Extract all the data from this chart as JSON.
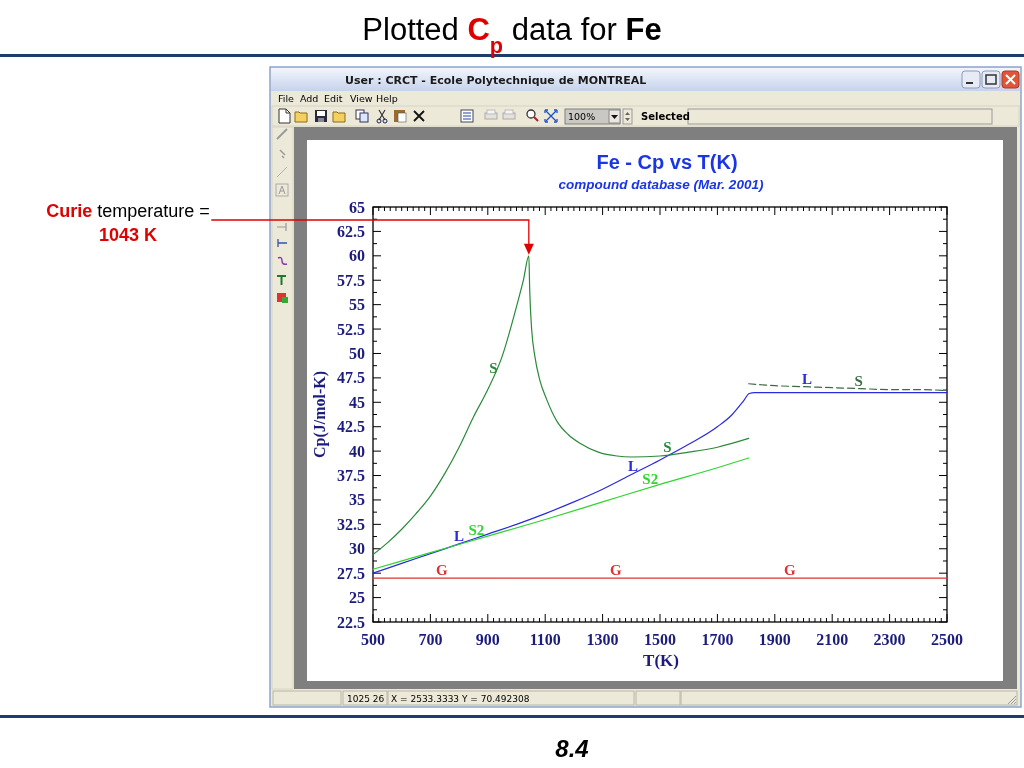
{
  "chart_data": {
    "type": "line",
    "title": "Fe - Cp vs T(K)",
    "subtitle": "compound database (Mar. 2001)",
    "xlabel": "T(K)",
    "ylabel": "Cp(J/mol-K)",
    "xlim": [
      500,
      2500
    ],
    "ylim": [
      22.5,
      65
    ],
    "xticks": [
      500,
      {
        "value": 520,
        "label": null
      },
      {
        "value": 540,
        "label": null
      },
      {
        "value": 560,
        "label": null
      },
      {
        "value": 580,
        "label": null
      },
      {
        "value": 600,
        "label": null
      },
      {
        "value": 620,
        "label": null
      },
      {
        "value": 640,
        "label": null
      },
      {
        "value": 660,
        "label": null
      },
      {
        "value": 680,
        "label": null
      },
      700,
      {
        "value": 720,
        "label": null
      },
      {
        "value": 740,
        "label": null
      },
      {
        "value": 760,
        "label": null
      },
      {
        "value": 780,
        "label": null
      },
      {
        "value": 800,
        "label": null
      },
      {
        "value": 820,
        "label": null
      },
      {
        "value": 840,
        "label": null
      },
      {
        "value": 860,
        "label": null
      },
      {
        "value": 880,
        "label": null
      },
      900,
      {
        "value": 920,
        "label": null
      },
      {
        "value": 940,
        "label": null
      },
      {
        "value": 960,
        "label": null
      },
      {
        "value": 980,
        "label": null
      },
      {
        "value": 1000,
        "label": null
      },
      {
        "value": 1020,
        "label": null
      },
      {
        "value": 1040,
        "label": null
      },
      {
        "value": 1060,
        "label": null
      },
      {
        "value": 1080,
        "label": null
      },
      1100,
      {
        "value": 1120,
        "label": null
      },
      {
        "value": 1140,
        "label": null
      },
      {
        "value": 1160,
        "label": null
      },
      {
        "value": 1180,
        "label": null
      },
      {
        "value": 1200,
        "label": null
      },
      {
        "value": 1220,
        "label": null
      },
      {
        "value": 1240,
        "label": null
      },
      {
        "value": 1260,
        "label": null
      },
      {
        "value": 1280,
        "label": null
      },
      1300,
      {
        "value": 1320,
        "label": null
      },
      {
        "value": 1340,
        "label": null
      },
      {
        "value": 1360,
        "label": null
      },
      {
        "value": 1380,
        "label": null
      },
      {
        "value": 1400,
        "label": null
      },
      {
        "value": 1420,
        "label": null
      },
      {
        "value": 1440,
        "label": null
      },
      {
        "value": 1460,
        "label": null
      },
      {
        "value": 1480,
        "label": null
      },
      1500,
      {
        "value": 1520,
        "label": null
      },
      {
        "value": 1540,
        "label": null
      },
      {
        "value": 1560,
        "label": null
      },
      {
        "value": 1580,
        "label": null
      },
      {
        "value": 1600,
        "label": null
      },
      {
        "value": 1620,
        "label": null
      },
      {
        "value": 1640,
        "label": null
      },
      {
        "value": 1660,
        "label": null
      },
      {
        "value": 1680,
        "label": null
      },
      1700,
      {
        "value": 1720,
        "label": null
      },
      {
        "value": 1740,
        "label": null
      },
      {
        "value": 1760,
        "label": null
      },
      {
        "value": 1780,
        "label": null
      },
      {
        "value": 1800,
        "label": null
      },
      {
        "value": 1820,
        "label": null
      },
      {
        "value": 1840,
        "label": null
      },
      {
        "value": 1860,
        "label": null
      },
      {
        "value": 1880,
        "label": null
      },
      1900,
      {
        "value": 1920,
        "label": null
      },
      {
        "value": 1940,
        "label": null
      },
      {
        "value": 1960,
        "label": null
      },
      {
        "value": 1980,
        "label": null
      },
      {
        "value": 2000,
        "label": null
      },
      {
        "value": 2020,
        "label": null
      },
      {
        "value": 2040,
        "label": null
      },
      {
        "value": 2060,
        "label": null
      },
      {
        "value": 2080,
        "label": null
      },
      2100,
      {
        "value": 2120,
        "label": null
      },
      {
        "value": 2140,
        "label": null
      },
      {
        "value": 2160,
        "label": null
      },
      {
        "value": 2180,
        "label": null
      },
      {
        "value": 2200,
        "label": null
      },
      {
        "value": 2220,
        "label": null
      },
      {
        "value": 2240,
        "label": null
      },
      {
        "value": 2260,
        "label": null
      },
      {
        "value": 2280,
        "label": null
      },
      2300,
      {
        "value": 2320,
        "label": null
      },
      {
        "value": 2340,
        "label": null
      },
      {
        "value": 2360,
        "label": null
      },
      {
        "value": 2380,
        "label": null
      },
      {
        "value": 2400,
        "label": null
      },
      {
        "value": 2420,
        "label": null
      },
      {
        "value": 2440,
        "label": null
      },
      {
        "value": 2460,
        "label": null
      },
      {
        "value": 2480,
        "label": null
      },
      2500
    ],
    "yticks": [
      22.5,
      {
        "value": 23.75,
        "label": null
      },
      25,
      {
        "value": 26.25,
        "label": null
      },
      27.5,
      {
        "value": 28.75,
        "label": null
      },
      30,
      {
        "value": 31.25,
        "label": null
      },
      32.5,
      {
        "value": 33.75,
        "label": null
      },
      35,
      {
        "value": 36.25,
        "label": null
      },
      37.5,
      {
        "value": 38.75,
        "label": null
      },
      40,
      {
        "value": 41.25,
        "label": null
      },
      42.5,
      {
        "value": 43.75,
        "label": null
      },
      45,
      {
        "value": 46.25,
        "label": null
      },
      47.5,
      {
        "value": 48.75,
        "label": null
      },
      50,
      {
        "value": 51.25,
        "label": null
      },
      52.5,
      {
        "value": 53.75,
        "label": null
      },
      55,
      {
        "value": 56.25,
        "label": null
      },
      57.5,
      {
        "value": 58.75,
        "label": null
      },
      60,
      {
        "value": 61.25,
        "label": null
      },
      62.5,
      {
        "value": 63.75,
        "label": null
      },
      65
    ],
    "series": [
      {
        "name": "G",
        "color": "#dd3333",
        "x": [
          500,
          1500,
          2500
        ],
        "values": [
          27,
          27,
          27
        ]
      },
      {
        "name": "L",
        "color": "#2b2bdd",
        "x": [
          500,
          600,
          700,
          800,
          900,
          1000,
          1100,
          1200,
          1300,
          1400,
          1500,
          1600,
          1700,
          1750,
          1790,
          1811,
          1830,
          2000,
          2500
        ],
        "values": [
          27.5,
          28.5,
          29.5,
          30.5,
          31.5,
          32.5,
          33.6,
          34.8,
          36.1,
          37.6,
          39.1,
          40.7,
          42.5,
          43.7,
          45.1,
          45.9,
          46,
          46,
          46
        ]
      },
      {
        "name": "S2",
        "color": "#2ed62e",
        "x": [
          500,
          700,
          900,
          1100,
          1300,
          1500,
          1700,
          1809
        ],
        "values": [
          27.9,
          29.6,
          31.3,
          33,
          34.8,
          36.6,
          38.3,
          39.3
        ]
      },
      {
        "name": "S",
        "color": "#2a8a3a",
        "x": [
          500,
          550,
          600,
          650,
          700,
          750,
          800,
          850,
          900,
          950,
          1000,
          1024,
          1043,
          1046,
          1053,
          1064,
          1081,
          1105,
          1140,
          1180,
          1221,
          1285,
          1350,
          1400,
          1500,
          1600,
          1700,
          1809
        ],
        "values": [
          29.4,
          30.6,
          32,
          33.6,
          35.4,
          37.7,
          40.4,
          43.5,
          46.3,
          49.7,
          54.8,
          57.5,
          60,
          56.5,
          52.4,
          49.7,
          47.3,
          45.3,
          43.1,
          41.7,
          40.8,
          39.9,
          39.5,
          39.4,
          39.5,
          39.9,
          40.4,
          41.3
        ]
      },
      {
        "name": "S",
        "color": "#3d6b45",
        "line_style": "dashed",
        "x": [
          1809,
          1900,
          2000,
          2100,
          2200,
          2300,
          2400,
          2500
        ],
        "values": [
          46.9,
          46.7,
          46.6,
          46.5,
          46.4,
          46.3,
          46.3,
          46.2
        ]
      }
    ],
    "annotations": [
      "Plotted C$_{p}$ data for Fe",
      "Curie temperature = 1043 K",
      "User : CRCT - Ecole Polytechnique de MONTREAL",
      "File",
      "Add",
      "Edit",
      "View",
      "Help",
      "100%",
      "Selected",
      "1025 26",
      "X = 2533.3333 Y = 70.492308",
      "8.4"
    ]
  }
}
